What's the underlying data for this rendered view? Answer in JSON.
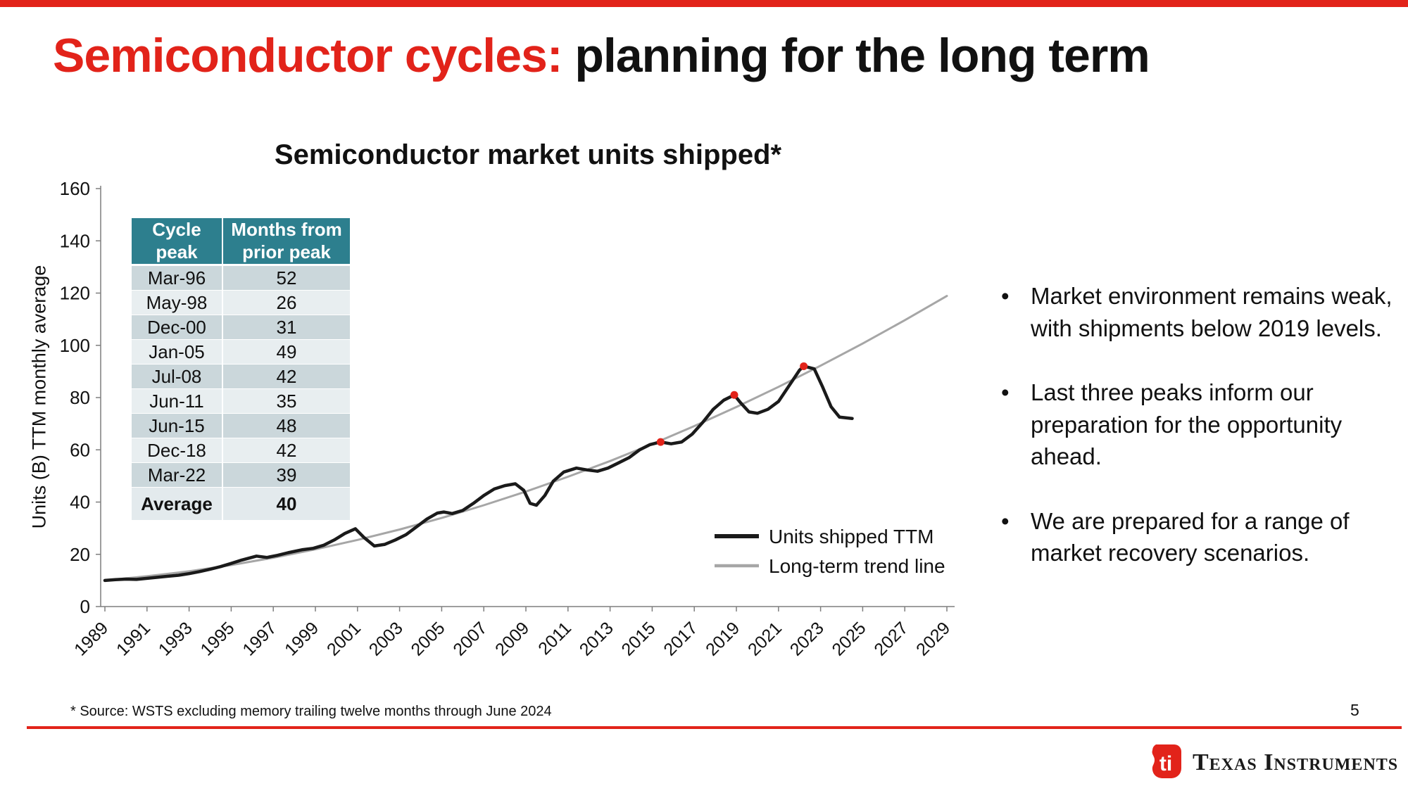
{
  "slide": {
    "title_red": "Semiconductor cycles:",
    "title_black": " planning for the long term",
    "footnote": "* Source: WSTS excluding memory trailing twelve months through June 2024",
    "page_number": "5",
    "logo_text": "Texas Instruments"
  },
  "bullets": [
    {
      "text": "Market environment remains weak, with shipments below 2019 levels."
    },
    {
      "text": "Last three peaks inform our preparation for the opportunity ahead."
    },
    {
      "text": "We are prepared for a range of market recovery scenarios."
    }
  ],
  "colors": {
    "accent_red": "#e2231a",
    "table_header_teal": "#2d7f8e",
    "table_row_dark": "#cbd7db",
    "table_row_light": "#e8eef0",
    "table_row_average": "#e3eaed",
    "line_black": "#1a1a1a",
    "trend_gray": "#a6a6a6",
    "axis_gray": "#7f7f7f"
  },
  "table": {
    "headers": [
      "Cycle peak",
      "Months from prior peak"
    ],
    "rows": [
      [
        "Mar-96",
        "52"
      ],
      [
        "May-98",
        "26"
      ],
      [
        "Dec-00",
        "31"
      ],
      [
        "Jan-05",
        "49"
      ],
      [
        "Jul-08",
        "42"
      ],
      [
        "Jun-11",
        "35"
      ],
      [
        "Jun-15",
        "48"
      ],
      [
        "Dec-18",
        "42"
      ],
      [
        "Mar-22",
        "39"
      ]
    ],
    "average_row": [
      "Average",
      "40"
    ]
  },
  "chart_data": {
    "type": "line",
    "title": "Semiconductor market units shipped*",
    "xlabel": "",
    "ylabel": "Units (B) TTM monthly average",
    "ylim": [
      0,
      160
    ],
    "yticks": [
      0,
      20,
      40,
      60,
      80,
      100,
      120,
      140,
      160
    ],
    "xlim": [
      1989,
      2030
    ],
    "xticks": [
      1989,
      1991,
      1993,
      1995,
      1997,
      1999,
      2001,
      2003,
      2005,
      2007,
      2009,
      2011,
      2013,
      2015,
      2017,
      2019,
      2021,
      2023,
      2025,
      2027,
      2029
    ],
    "grid": false,
    "legend_position": "inside-lower-right",
    "series": [
      {
        "name": "Units shipped TTM",
        "color": "#1a1a1a",
        "width": 4.5,
        "points": [
          [
            1989.0,
            10.0
          ],
          [
            1989.5,
            10.3
          ],
          [
            1990.0,
            10.5
          ],
          [
            1990.5,
            10.4
          ],
          [
            1991.0,
            10.8
          ],
          [
            1991.5,
            11.2
          ],
          [
            1992.0,
            11.6
          ],
          [
            1992.5,
            12.0
          ],
          [
            1993.0,
            12.6
          ],
          [
            1993.5,
            13.4
          ],
          [
            1994.0,
            14.3
          ],
          [
            1994.5,
            15.3
          ],
          [
            1995.0,
            16.5
          ],
          [
            1995.5,
            17.8
          ],
          [
            1996.2,
            19.3
          ],
          [
            1996.7,
            18.8
          ],
          [
            1997.2,
            19.6
          ],
          [
            1997.7,
            20.6
          ],
          [
            1998.4,
            21.8
          ],
          [
            1998.9,
            22.3
          ],
          [
            1999.4,
            23.5
          ],
          [
            1999.9,
            25.5
          ],
          [
            2000.4,
            28.0
          ],
          [
            2000.9,
            29.8
          ],
          [
            2001.3,
            26.5
          ],
          [
            2001.8,
            23.2
          ],
          [
            2002.3,
            23.8
          ],
          [
            2002.8,
            25.5
          ],
          [
            2003.3,
            27.5
          ],
          [
            2003.8,
            30.5
          ],
          [
            2004.3,
            33.5
          ],
          [
            2004.8,
            35.8
          ],
          [
            2005.1,
            36.2
          ],
          [
            2005.5,
            35.6
          ],
          [
            2006.0,
            36.8
          ],
          [
            2006.5,
            39.5
          ],
          [
            2007.0,
            42.5
          ],
          [
            2007.5,
            45.0
          ],
          [
            2008.0,
            46.3
          ],
          [
            2008.5,
            47.0
          ],
          [
            2008.9,
            44.5
          ],
          [
            2009.2,
            39.5
          ],
          [
            2009.5,
            38.8
          ],
          [
            2009.9,
            42.5
          ],
          [
            2010.3,
            48.0
          ],
          [
            2010.8,
            51.5
          ],
          [
            2011.4,
            53.0
          ],
          [
            2011.9,
            52.3
          ],
          [
            2012.4,
            51.8
          ],
          [
            2012.9,
            53.0
          ],
          [
            2013.4,
            55.0
          ],
          [
            2013.9,
            57.0
          ],
          [
            2014.4,
            60.0
          ],
          [
            2014.9,
            62.0
          ],
          [
            2015.4,
            63.0
          ],
          [
            2015.9,
            62.3
          ],
          [
            2016.4,
            63.0
          ],
          [
            2016.9,
            66.0
          ],
          [
            2017.4,
            70.5
          ],
          [
            2017.9,
            75.5
          ],
          [
            2018.4,
            79.0
          ],
          [
            2018.9,
            81.0
          ],
          [
            2019.2,
            78.0
          ],
          [
            2019.6,
            74.5
          ],
          [
            2020.0,
            74.0
          ],
          [
            2020.5,
            75.5
          ],
          [
            2021.0,
            78.5
          ],
          [
            2021.5,
            84.5
          ],
          [
            2022.0,
            90.5
          ],
          [
            2022.2,
            92.0
          ],
          [
            2022.7,
            91.0
          ],
          [
            2023.1,
            84.0
          ],
          [
            2023.5,
            76.5
          ],
          [
            2023.9,
            72.5
          ],
          [
            2024.5,
            72.0
          ]
        ]
      },
      {
        "name": "Long-term trend line",
        "color": "#a6a6a6",
        "width": 3,
        "points": [
          [
            1989,
            10.0
          ],
          [
            1991,
            11.6
          ],
          [
            1993,
            13.5
          ],
          [
            1995,
            15.9
          ],
          [
            1997,
            18.7
          ],
          [
            1999,
            21.9
          ],
          [
            2001,
            25.5
          ],
          [
            2003,
            29.5
          ],
          [
            2005,
            33.9
          ],
          [
            2007,
            38.8
          ],
          [
            2009,
            44.0
          ],
          [
            2011,
            49.7
          ],
          [
            2013,
            55.7
          ],
          [
            2015,
            62.2
          ],
          [
            2017,
            69.1
          ],
          [
            2019,
            76.4
          ],
          [
            2021,
            84.1
          ],
          [
            2023,
            92.2
          ],
          [
            2025,
            100.7
          ],
          [
            2027,
            109.6
          ],
          [
            2029,
            118.9
          ]
        ]
      }
    ],
    "peak_markers": {
      "color": "#e2231a",
      "radius": 5.5,
      "points": [
        [
          2015.4,
          63.0
        ],
        [
          2018.9,
          81.0
        ],
        [
          2022.2,
          92.0
        ]
      ]
    }
  }
}
